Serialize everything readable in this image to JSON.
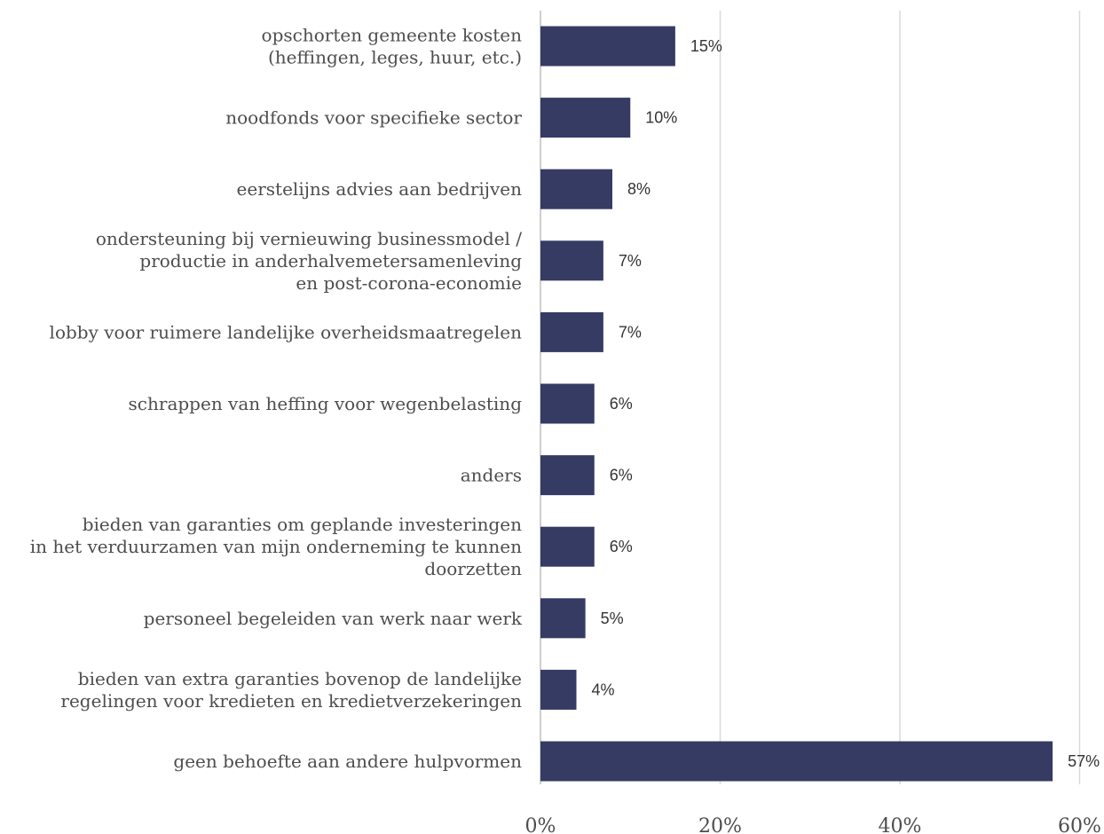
{
  "chart_data": {
    "type": "bar",
    "orientation": "horizontal",
    "categories": [
      [
        "opschorten gemeente kosten",
        "(heffingen, leges, huur, etc.)"
      ],
      [
        "noodfonds voor specifieke sector"
      ],
      [
        "eerstelijns advies aan bedrijven"
      ],
      [
        "ondersteuning bij vernieuwing businessmodel /",
        "productie in anderhalvemetersamenleving",
        "en post-corona-economie"
      ],
      [
        "lobby voor ruimere landelijke overheidsmaatregelen"
      ],
      [
        "schrappen van heffing voor wegenbelasting"
      ],
      [
        "anders"
      ],
      [
        "bieden van garanties om geplande investeringen",
        "in het verduurzamen van mijn onderneming te kunnen",
        "doorzetten"
      ],
      [
        "personeel begeleiden van werk naar werk"
      ],
      [
        "bieden van extra garanties bovenop de landelijke",
        "regelingen voor kredieten en kredietverzekeringen"
      ],
      [
        "geen behoefte aan andere hulpvormen"
      ]
    ],
    "values": [
      15,
      10,
      8,
      7,
      7,
      6,
      6,
      6,
      5,
      4,
      57
    ],
    "value_labels": [
      "15%",
      "10%",
      "8%",
      "7%",
      "7%",
      "6%",
      "6%",
      "6%",
      "5%",
      "4%",
      "57%"
    ],
    "x_ticks": [
      0,
      20,
      40,
      60
    ],
    "x_tick_labels": [
      "0%",
      "20%",
      "40%",
      "60%"
    ],
    "xlim": [
      0,
      60
    ],
    "grid": "vertical",
    "legend": "none",
    "bar_color": "#363b64",
    "title": "",
    "xlabel": "",
    "ylabel": ""
  }
}
